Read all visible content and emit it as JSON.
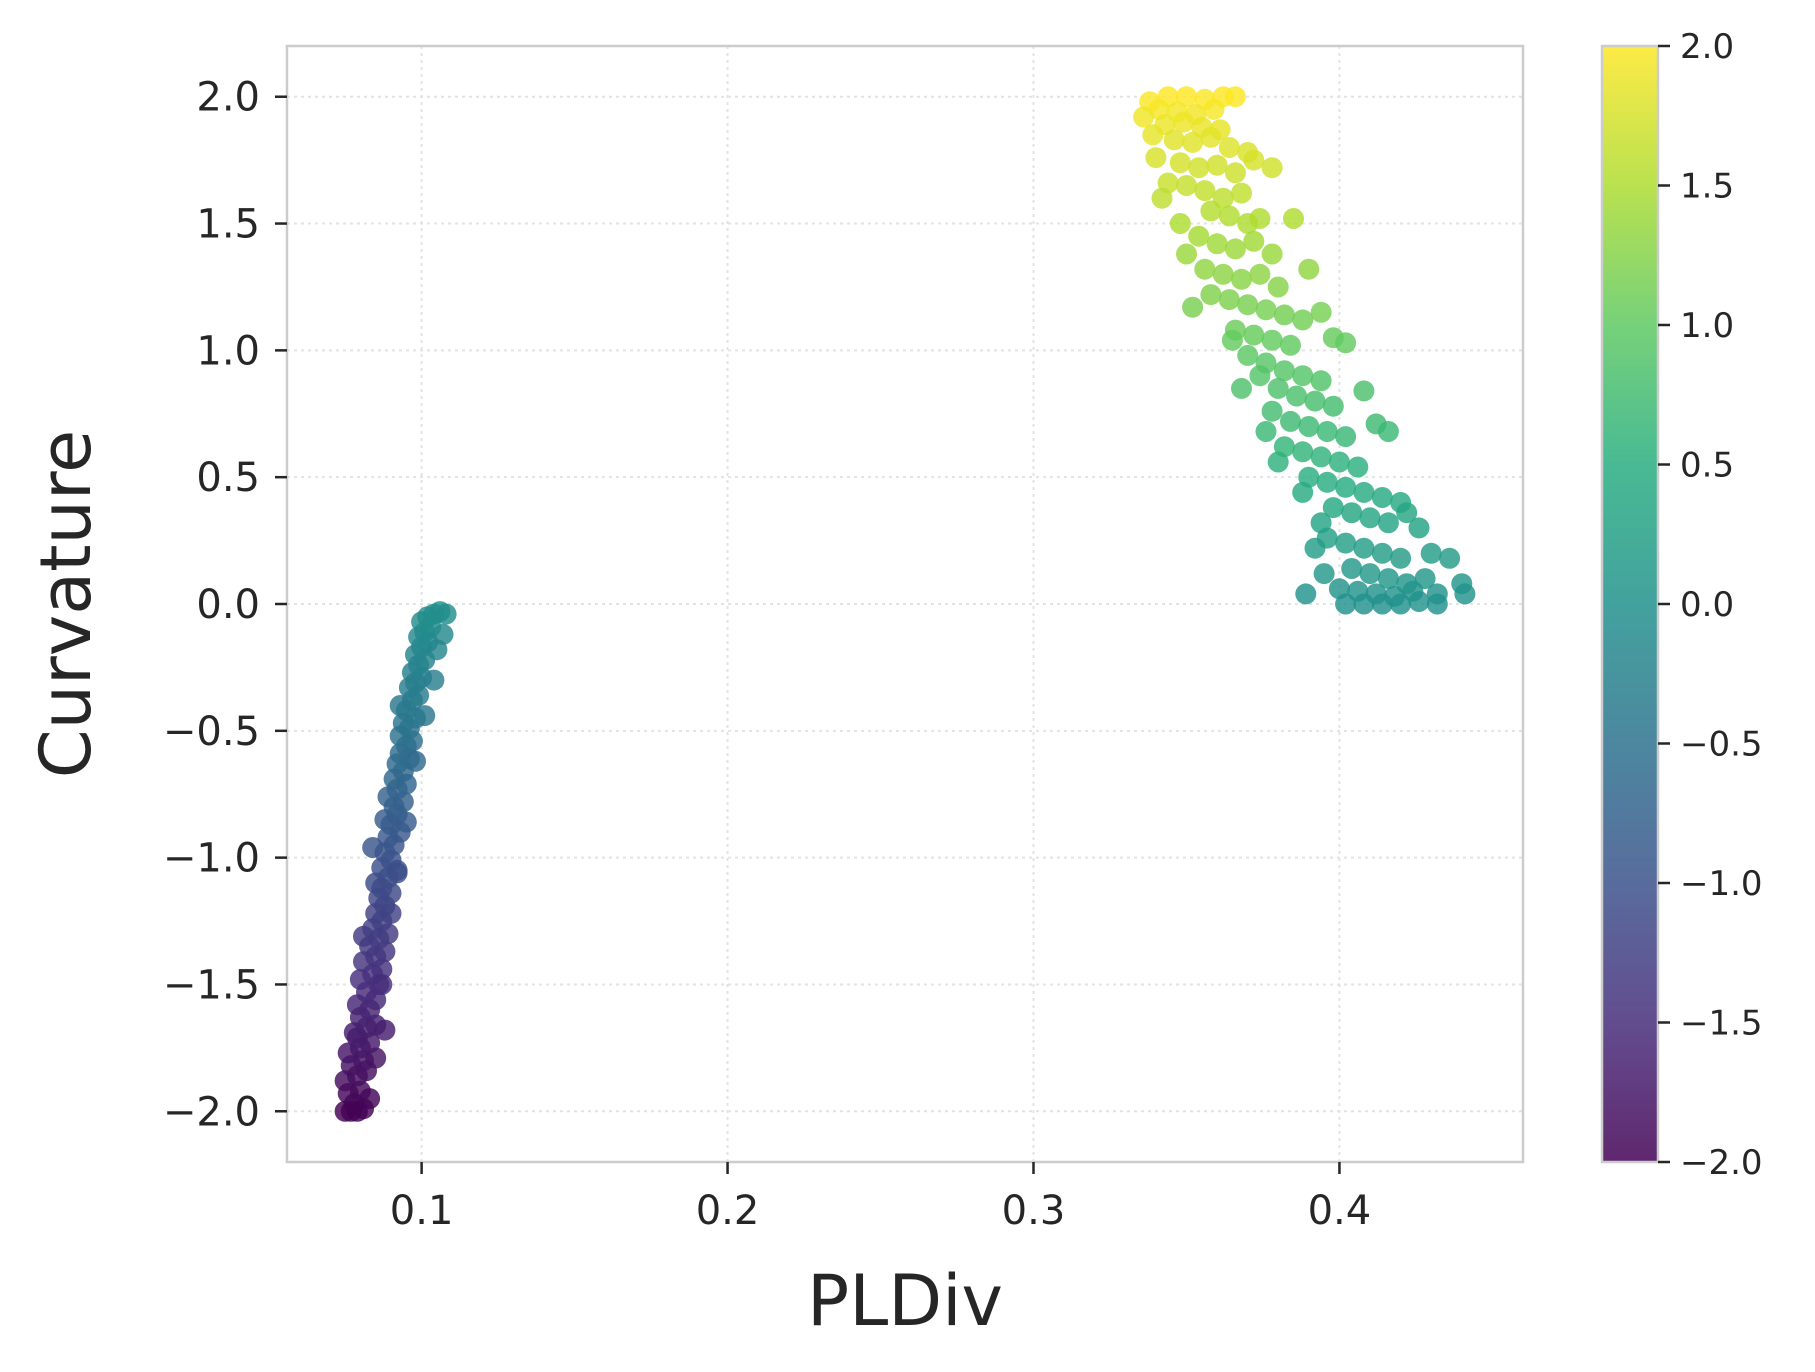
{
  "chart_data": {
    "type": "scatter",
    "title": "",
    "xlabel": "PLDiv",
    "ylabel": "Curvature",
    "xlim": [
      0.056,
      0.46
    ],
    "ylim": [
      -2.2,
      2.2
    ],
    "x_ticks": [
      {
        "value": 0.1,
        "label": "0.1"
      },
      {
        "value": 0.2,
        "label": "0.2"
      },
      {
        "value": 0.3,
        "label": "0.3"
      },
      {
        "value": 0.4,
        "label": "0.4"
      }
    ],
    "y_ticks": [
      {
        "value": 2.0,
        "label": "2.0"
      },
      {
        "value": 1.5,
        "label": "1.5"
      },
      {
        "value": 1.0,
        "label": "1.0"
      },
      {
        "value": 0.5,
        "label": "0.5"
      },
      {
        "value": 0.0,
        "label": "0.0"
      },
      {
        "value": -0.5,
        "label": "−0.5"
      },
      {
        "value": -1.0,
        "label": "−1.0"
      },
      {
        "value": -1.5,
        "label": "−1.5"
      },
      {
        "value": -2.0,
        "label": "−2.0"
      }
    ],
    "grid": true,
    "colormap": "viridis",
    "color_by": "y",
    "colorbar": {
      "range": [
        -2.0,
        2.0
      ],
      "ticks": [
        {
          "value": 2.0,
          "label": "2.0"
        },
        {
          "value": 1.5,
          "label": "1.5"
        },
        {
          "value": 1.0,
          "label": "1.0"
        },
        {
          "value": 0.5,
          "label": "0.5"
        },
        {
          "value": 0.0,
          "label": "0.0"
        },
        {
          "value": -0.5,
          "label": "−0.5"
        },
        {
          "value": -1.0,
          "label": "−1.0"
        },
        {
          "value": -1.5,
          "label": "−1.5"
        },
        {
          "value": -2.0,
          "label": "−2.0"
        }
      ]
    },
    "points": [
      [
        0.077,
        -2.0
      ],
      [
        0.079,
        -2.0
      ],
      [
        0.081,
        -1.99
      ],
      [
        0.075,
        -2.0
      ],
      [
        0.078,
        -1.97
      ],
      [
        0.083,
        -1.95
      ],
      [
        0.076,
        -1.93
      ],
      [
        0.08,
        -1.92
      ],
      [
        0.075,
        -1.88
      ],
      [
        0.079,
        -1.86
      ],
      [
        0.082,
        -1.84
      ],
      [
        0.077,
        -1.82
      ],
      [
        0.081,
        -1.8
      ],
      [
        0.085,
        -1.79
      ],
      [
        0.076,
        -1.77
      ],
      [
        0.08,
        -1.75
      ],
      [
        0.083,
        -1.73
      ],
      [
        0.079,
        -1.71
      ],
      [
        0.078,
        -1.69
      ],
      [
        0.082,
        -1.67
      ],
      [
        0.085,
        -1.66
      ],
      [
        0.088,
        -1.68
      ],
      [
        0.08,
        -1.63
      ],
      [
        0.083,
        -1.6
      ],
      [
        0.079,
        -1.58
      ],
      [
        0.085,
        -1.56
      ],
      [
        0.082,
        -1.53
      ],
      [
        0.086,
        -1.5
      ],
      [
        0.08,
        -1.48
      ],
      [
        0.084,
        -1.46
      ],
      [
        0.087,
        -1.44
      ],
      [
        0.081,
        -1.41
      ],
      [
        0.085,
        -1.39
      ],
      [
        0.088,
        -1.37
      ],
      [
        0.083,
        -1.35
      ],
      [
        0.086,
        -1.32
      ],
      [
        0.081,
        -1.31
      ],
      [
        0.089,
        -1.3
      ],
      [
        0.084,
        -1.28
      ],
      [
        0.087,
        -1.25
      ],
      [
        0.085,
        -1.22
      ],
      [
        0.088,
        -1.19
      ],
      [
        0.086,
        -1.16
      ],
      [
        0.09,
        -1.14
      ],
      [
        0.087,
        -1.12
      ],
      [
        0.085,
        -1.1
      ],
      [
        0.089,
        -1.08
      ],
      [
        0.092,
        -1.06
      ],
      [
        0.087,
        -1.04
      ],
      [
        0.09,
        -1.01
      ],
      [
        0.088,
        -0.98
      ],
      [
        0.084,
        -0.96
      ],
      [
        0.091,
        -0.95
      ],
      [
        0.089,
        -0.92
      ],
      [
        0.093,
        -0.9
      ],
      [
        0.09,
        -0.87
      ],
      [
        0.088,
        -0.85
      ],
      [
        0.092,
        -0.83
      ],
      [
        0.091,
        -0.8
      ],
      [
        0.094,
        -0.78
      ],
      [
        0.089,
        -0.76
      ],
      [
        0.092,
        -0.73
      ],
      [
        0.095,
        -0.71
      ],
      [
        0.091,
        -0.69
      ],
      [
        0.094,
        -0.66
      ],
      [
        0.092,
        -0.63
      ],
      [
        0.096,
        -0.61
      ],
      [
        0.093,
        -0.59
      ],
      [
        0.095,
        -0.56
      ],
      [
        0.097,
        -0.54
      ],
      [
        0.093,
        -0.52
      ],
      [
        0.096,
        -0.49
      ],
      [
        0.094,
        -0.47
      ],
      [
        0.098,
        -0.45
      ],
      [
        0.095,
        -0.42
      ],
      [
        0.093,
        -0.4
      ],
      [
        0.097,
        -0.38
      ],
      [
        0.099,
        -0.36
      ],
      [
        0.096,
        -0.33
      ],
      [
        0.098,
        -0.31
      ],
      [
        0.1,
        -0.29
      ],
      [
        0.097,
        -0.27
      ],
      [
        0.099,
        -0.24
      ],
      [
        0.101,
        -0.22
      ],
      [
        0.098,
        -0.2
      ],
      [
        0.1,
        -0.17
      ],
      [
        0.102,
        -0.15
      ],
      [
        0.099,
        -0.13
      ],
      [
        0.101,
        -0.11
      ],
      [
        0.103,
        -0.09
      ],
      [
        0.1,
        -0.07
      ],
      [
        0.102,
        -0.05
      ],
      [
        0.104,
        -0.04
      ],
      [
        0.106,
        -0.03
      ],
      [
        0.108,
        -0.04
      ],
      [
        0.107,
        -0.12
      ],
      [
        0.105,
        -0.18
      ],
      [
        0.104,
        -0.3
      ],
      [
        0.101,
        -0.44
      ],
      [
        0.098,
        -0.62
      ],
      [
        0.095,
        -0.86
      ],
      [
        0.092,
        -1.05
      ],
      [
        0.09,
        -1.22
      ],
      [
        0.087,
        -1.5
      ],
      [
        0.338,
        1.98
      ],
      [
        0.344,
        2.0
      ],
      [
        0.35,
        2.0
      ],
      [
        0.356,
        1.99
      ],
      [
        0.362,
        2.0
      ],
      [
        0.366,
        2.0
      ],
      [
        0.341,
        1.95
      ],
      [
        0.347,
        1.94
      ],
      [
        0.353,
        1.93
      ],
      [
        0.359,
        1.95
      ],
      [
        0.336,
        1.92
      ],
      [
        0.343,
        1.89
      ],
      [
        0.349,
        1.9
      ],
      [
        0.355,
        1.88
      ],
      [
        0.361,
        1.87
      ],
      [
        0.339,
        1.85
      ],
      [
        0.346,
        1.83
      ],
      [
        0.352,
        1.82
      ],
      [
        0.358,
        1.84
      ],
      [
        0.364,
        1.8
      ],
      [
        0.37,
        1.78
      ],
      [
        0.34,
        1.76
      ],
      [
        0.348,
        1.74
      ],
      [
        0.354,
        1.72
      ],
      [
        0.36,
        1.73
      ],
      [
        0.366,
        1.7
      ],
      [
        0.372,
        1.75
      ],
      [
        0.378,
        1.72
      ],
      [
        0.344,
        1.66
      ],
      [
        0.35,
        1.65
      ],
      [
        0.356,
        1.63
      ],
      [
        0.362,
        1.6
      ],
      [
        0.368,
        1.62
      ],
      [
        0.342,
        1.6
      ],
      [
        0.358,
        1.55
      ],
      [
        0.364,
        1.53
      ],
      [
        0.37,
        1.5
      ],
      [
        0.374,
        1.52
      ],
      [
        0.348,
        1.5
      ],
      [
        0.385,
        1.52
      ],
      [
        0.354,
        1.45
      ],
      [
        0.36,
        1.42
      ],
      [
        0.366,
        1.4
      ],
      [
        0.372,
        1.43
      ],
      [
        0.378,
        1.38
      ],
      [
        0.35,
        1.38
      ],
      [
        0.356,
        1.32
      ],
      [
        0.362,
        1.3
      ],
      [
        0.368,
        1.28
      ],
      [
        0.374,
        1.3
      ],
      [
        0.38,
        1.25
      ],
      [
        0.39,
        1.32
      ],
      [
        0.358,
        1.22
      ],
      [
        0.364,
        1.2
      ],
      [
        0.37,
        1.18
      ],
      [
        0.376,
        1.16
      ],
      [
        0.382,
        1.14
      ],
      [
        0.352,
        1.17
      ],
      [
        0.388,
        1.12
      ],
      [
        0.394,
        1.15
      ],
      [
        0.366,
        1.08
      ],
      [
        0.372,
        1.06
      ],
      [
        0.378,
        1.04
      ],
      [
        0.384,
        1.02
      ],
      [
        0.398,
        1.05
      ],
      [
        0.402,
        1.03
      ],
      [
        0.365,
        1.04
      ],
      [
        0.37,
        0.98
      ],
      [
        0.376,
        0.95
      ],
      [
        0.382,
        0.92
      ],
      [
        0.388,
        0.9
      ],
      [
        0.394,
        0.88
      ],
      [
        0.374,
        0.9
      ],
      [
        0.38,
        0.85
      ],
      [
        0.386,
        0.82
      ],
      [
        0.392,
        0.8
      ],
      [
        0.398,
        0.78
      ],
      [
        0.368,
        0.85
      ],
      [
        0.408,
        0.84
      ],
      [
        0.378,
        0.76
      ],
      [
        0.384,
        0.72
      ],
      [
        0.39,
        0.7
      ],
      [
        0.396,
        0.68
      ],
      [
        0.402,
        0.66
      ],
      [
        0.376,
        0.68
      ],
      [
        0.412,
        0.71
      ],
      [
        0.382,
        0.62
      ],
      [
        0.388,
        0.6
      ],
      [
        0.394,
        0.58
      ],
      [
        0.4,
        0.56
      ],
      [
        0.406,
        0.54
      ],
      [
        0.38,
        0.56
      ],
      [
        0.416,
        0.68
      ],
      [
        0.39,
        0.5
      ],
      [
        0.396,
        0.48
      ],
      [
        0.402,
        0.46
      ],
      [
        0.408,
        0.44
      ],
      [
        0.414,
        0.42
      ],
      [
        0.388,
        0.44
      ],
      [
        0.42,
        0.4
      ],
      [
        0.398,
        0.38
      ],
      [
        0.404,
        0.36
      ],
      [
        0.41,
        0.34
      ],
      [
        0.416,
        0.32
      ],
      [
        0.422,
        0.36
      ],
      [
        0.394,
        0.32
      ],
      [
        0.426,
        0.3
      ],
      [
        0.396,
        0.26
      ],
      [
        0.402,
        0.24
      ],
      [
        0.408,
        0.22
      ],
      [
        0.414,
        0.2
      ],
      [
        0.42,
        0.18
      ],
      [
        0.392,
        0.22
      ],
      [
        0.43,
        0.2
      ],
      [
        0.404,
        0.14
      ],
      [
        0.41,
        0.12
      ],
      [
        0.416,
        0.1
      ],
      [
        0.422,
        0.08
      ],
      [
        0.428,
        0.1
      ],
      [
        0.436,
        0.18
      ],
      [
        0.4,
        0.06
      ],
      [
        0.406,
        0.05
      ],
      [
        0.412,
        0.04
      ],
      [
        0.418,
        0.03
      ],
      [
        0.424,
        0.05
      ],
      [
        0.432,
        0.04
      ],
      [
        0.44,
        0.08
      ],
      [
        0.389,
        0.04
      ],
      [
        0.402,
        0.0
      ],
      [
        0.408,
        0.0
      ],
      [
        0.414,
        0.0
      ],
      [
        0.42,
        0.0
      ],
      [
        0.426,
        0.01
      ],
      [
        0.432,
        0.0
      ],
      [
        0.441,
        0.04
      ],
      [
        0.395,
        0.12
      ]
    ]
  }
}
